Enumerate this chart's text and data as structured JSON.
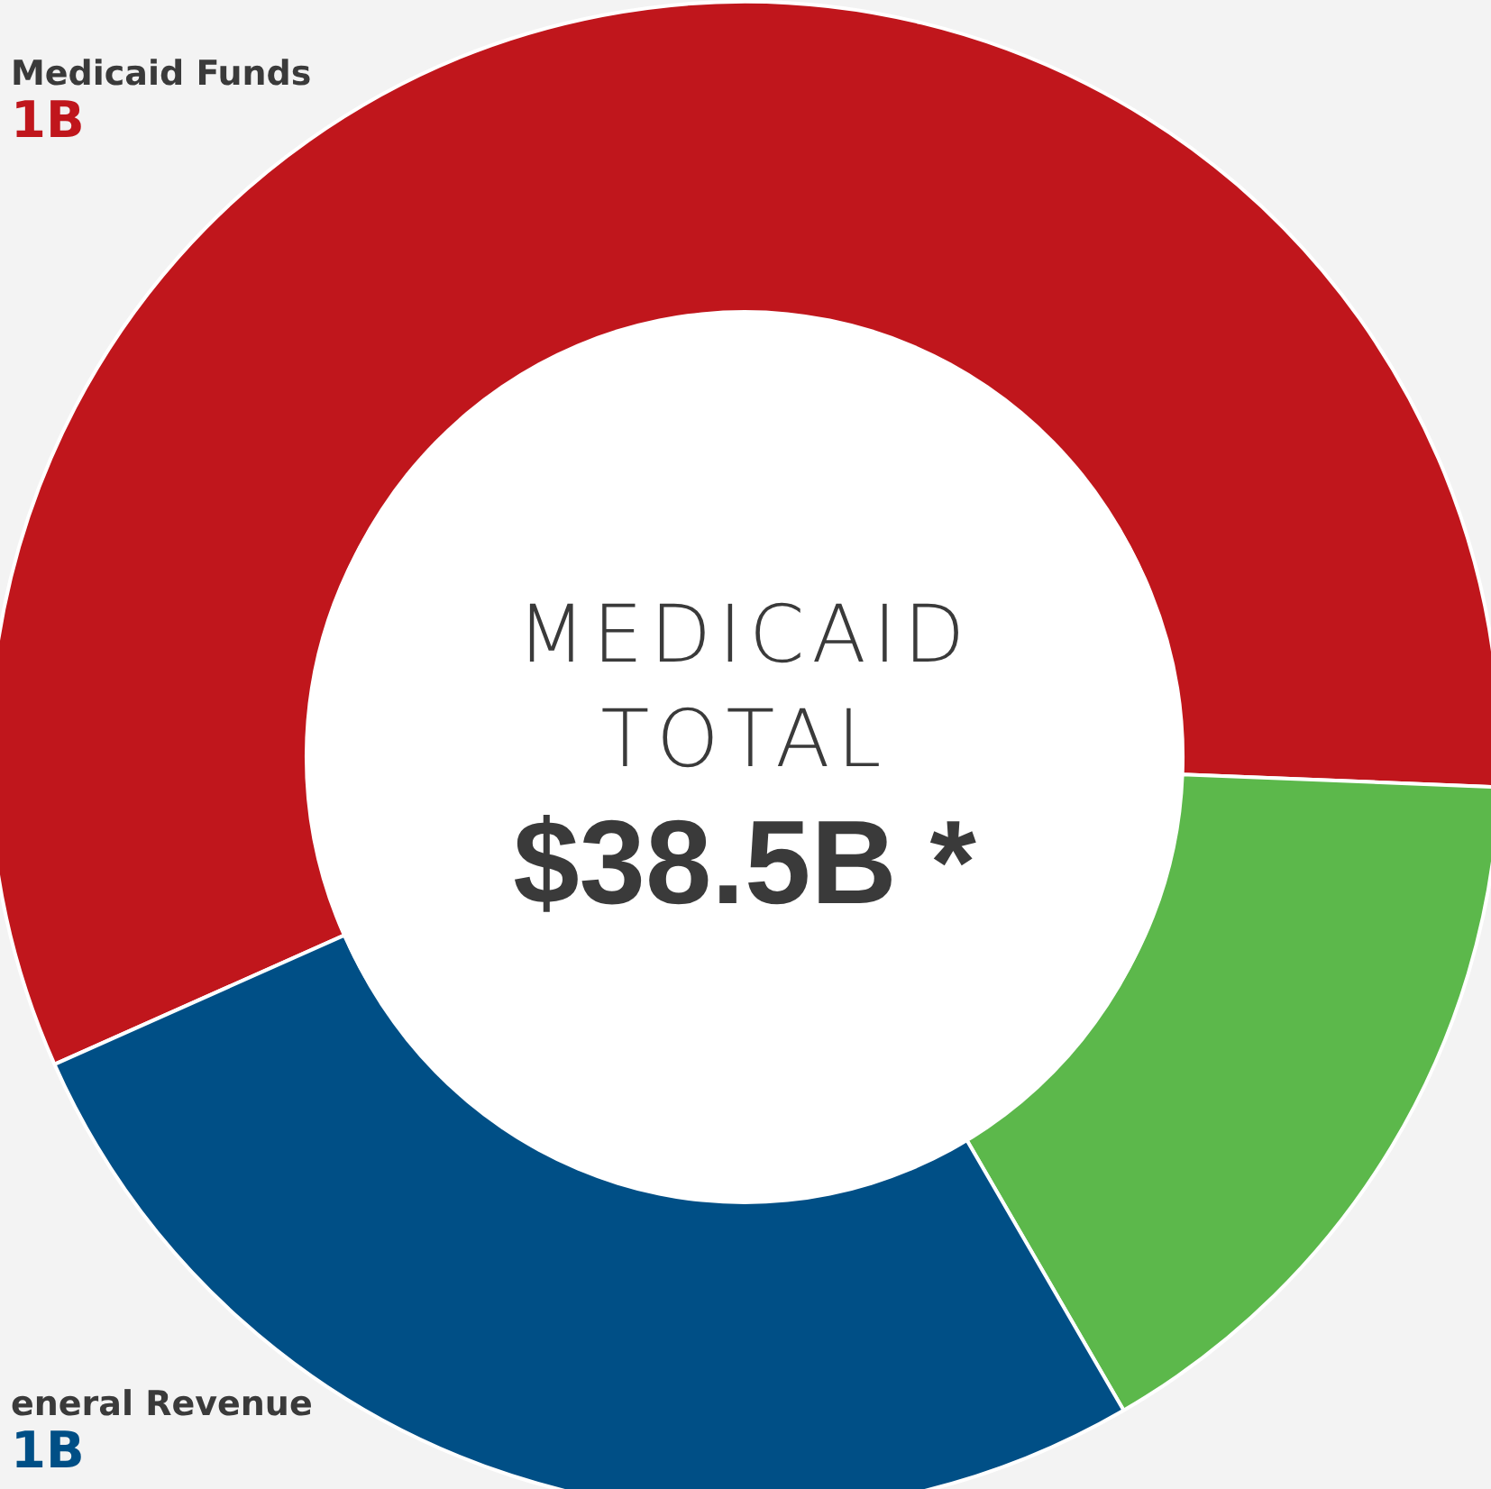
{
  "chart_data": {
    "type": "donut",
    "title": "MEDICAID TOTAL",
    "categories": [
      "Medicaid Funds",
      null,
      "eneral Revenue"
    ],
    "values": [
      57.3,
      16,
      26.7
    ],
    "colors": [
      "#c0161c",
      "#5cb84b",
      "#004f86"
    ],
    "annotations": [
      "$38.5B *",
      "1B",
      "1B"
    ],
    "legend": false
  }
}
